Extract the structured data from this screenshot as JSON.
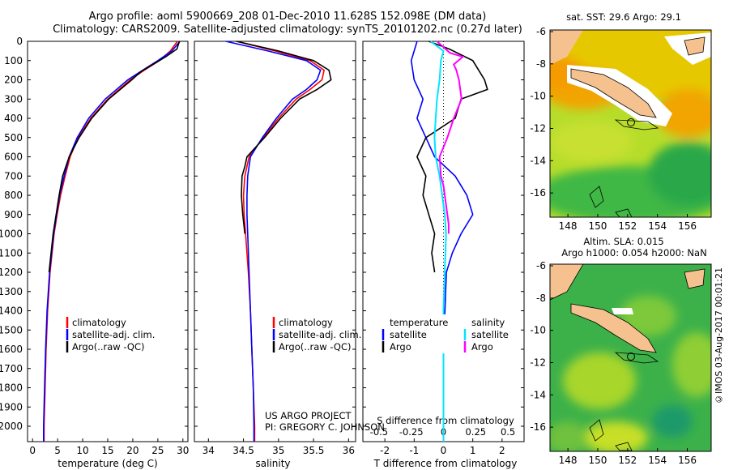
{
  "header": {
    "title_line1": "Argo profile: aoml 5900669_208 01-Dec-2010 11.628S 152.098E (DM data)",
    "title_line2": "Climatology: CARS2009. Satellite-adjusted climatology: synTS_20101202.nc (0.27d later)"
  },
  "colors": {
    "climatology": "#ff0000",
    "satellite": "#0000ff",
    "argo": "#000000",
    "sat_s": "#00e5ff",
    "argo_s": "#ff00ff"
  },
  "depth_axis": {
    "ticks": [
      "0",
      "100",
      "200",
      "300",
      "400",
      "500",
      "600",
      "700",
      "800",
      "900",
      "1000",
      "1100",
      "1200",
      "1300",
      "1400",
      "1500",
      "1600",
      "1700",
      "1800",
      "1900",
      "2000"
    ]
  },
  "chart_data": [
    {
      "type": "line",
      "xlabel": "temperature (deg C)",
      "xlim": [
        -1,
        31
      ],
      "ylim": [
        0,
        2080
      ],
      "xticks": [
        "0",
        "5",
        "10",
        "15",
        "20",
        "25",
        "30"
      ],
      "legend": [
        "climatology",
        "satellite-adj. clim.",
        "Argo(..raw -QC)"
      ],
      "series": [
        {
          "name": "climatology",
          "depth": [
            0,
            50,
            100,
            150,
            200,
            300,
            400,
            500,
            600,
            700,
            800,
            900,
            1000,
            1200,
            1400,
            1600,
            1800,
            2000,
            2080
          ],
          "values": [
            28.9,
            27.5,
            25.3,
            22.3,
            19.5,
            15.0,
            11.6,
            9.1,
            7.5,
            6.5,
            5.6,
            4.9,
            4.3,
            3.5,
            3.0,
            2.7,
            2.5,
            2.3,
            2.3
          ]
        },
        {
          "name": "satellite",
          "depth": [
            0,
            50,
            100,
            150,
            200,
            300,
            400,
            500,
            600,
            700,
            800,
            900,
            1000,
            1200,
            1400,
            1600,
            1800,
            2000,
            2080
          ],
          "values": [
            29.4,
            27.8,
            25.0,
            22.0,
            19.0,
            14.5,
            11.2,
            8.9,
            7.3,
            6.3,
            5.4,
            4.8,
            4.2,
            3.4,
            2.9,
            2.6,
            2.4,
            2.2,
            2.2
          ]
        },
        {
          "name": "argo",
          "depth": [
            0,
            40,
            80,
            120,
            160,
            200,
            300,
            400,
            500,
            600,
            700,
            800,
            900,
            1000,
            1150,
            1200
          ],
          "values": [
            29.3,
            28.8,
            26.6,
            24.0,
            21.5,
            19.8,
            15.2,
            11.8,
            9.3,
            7.3,
            6.0,
            5.3,
            4.7,
            4.1,
            3.5,
            3.3
          ]
        }
      ]
    },
    {
      "type": "line",
      "xlabel": "salinity",
      "xlim": [
        33.8,
        36.1
      ],
      "ylim": [
        0,
        2080
      ],
      "xticks": [
        "34",
        "34.5",
        "35",
        "35.5",
        "36"
      ],
      "legend": [
        "climatology",
        "satellite-adj. clim.",
        "Argo(..raw -QC)"
      ],
      "annotation_line1": "US ARGO PROJECT",
      "annotation_line2": "PI: GREGORY C. JOHNSON",
      "series": [
        {
          "name": "climatology",
          "depth": [
            0,
            50,
            100,
            150,
            200,
            250,
            300,
            400,
            500,
            600,
            700,
            800,
            900,
            1000,
            1200,
            1400,
            1600,
            1800,
            2000,
            2080
          ],
          "values": [
            34.4,
            34.95,
            35.45,
            35.65,
            35.62,
            35.45,
            35.25,
            35.0,
            34.78,
            34.58,
            34.52,
            34.5,
            34.51,
            34.53,
            34.57,
            34.6,
            34.62,
            34.64,
            34.66,
            34.66
          ]
        },
        {
          "name": "satellite",
          "depth": [
            0,
            50,
            100,
            150,
            200,
            250,
            300,
            400,
            500,
            600,
            700,
            800,
            900,
            1000,
            1200,
            1400,
            1600,
            1800,
            2000,
            2080
          ],
          "values": [
            34.25,
            34.85,
            35.4,
            35.6,
            35.55,
            35.4,
            35.2,
            34.97,
            34.77,
            34.6,
            34.56,
            34.55,
            34.55,
            34.56,
            34.58,
            34.6,
            34.62,
            34.64,
            34.65,
            34.65
          ]
        },
        {
          "name": "argo",
          "depth": [
            0,
            50,
            100,
            150,
            200,
            250,
            300,
            400,
            500,
            600,
            650,
            700,
            800,
            900,
            1000
          ],
          "values": [
            34.4,
            35.0,
            35.5,
            35.72,
            35.75,
            35.55,
            35.3,
            35.03,
            34.8,
            34.55,
            34.52,
            34.48,
            34.47,
            34.49,
            34.52
          ]
        }
      ]
    },
    {
      "type": "line",
      "xlabel": "T difference from climatology",
      "xlabel_top": "S difference from climatology",
      "xlim": [
        -2.75,
        2.75
      ],
      "ylim": [
        0,
        2080
      ],
      "xticks": [
        "-2",
        "-1",
        "0",
        "1",
        "2"
      ],
      "xticks_top": [
        "-0.5",
        "-0.25",
        "0",
        "0.25",
        "0.5"
      ],
      "legend_left_title": "temperature",
      "legend_right_title": "salinity",
      "legend_left": [
        "satellite",
        "Argo"
      ],
      "legend_right": [
        "satellite",
        "Argo"
      ],
      "series": [
        {
          "name": "T satellite",
          "depth": [
            0,
            100,
            200,
            300,
            400,
            500,
            600,
            700,
            800,
            900,
            1000,
            1100,
            1200,
            1400,
            1600,
            1800,
            2000,
            2080
          ],
          "values": [
            -0.9,
            -1.1,
            -1.0,
            -0.7,
            -0.9,
            -0.6,
            -0.3,
            0.4,
            0.8,
            1.0,
            0.6,
            0.3,
            0.1,
            0.05,
            0,
            0,
            0,
            0
          ]
        },
        {
          "name": "T argo",
          "depth": [
            0,
            40,
            100,
            150,
            200,
            250,
            300,
            400,
            500,
            600,
            700,
            800,
            900,
            950,
            1000,
            1100,
            1200
          ],
          "values": [
            -0.5,
            0.2,
            1.0,
            1.2,
            1.4,
            1.5,
            0.6,
            0.4,
            -0.6,
            -0.9,
            -0.6,
            -0.7,
            -0.5,
            -0.4,
            -0.3,
            -0.4,
            -0.3
          ]
        },
        {
          "name": "S satellite",
          "depth": [
            0,
            50,
            100,
            200,
            300,
            400,
            500,
            600,
            700,
            800,
            900,
            1000,
            1200,
            1400,
            1600,
            1800,
            2000,
            2080
          ],
          "values": [
            -0.1,
            0,
            -0.02,
            -0.03,
            -0.05,
            -0.06,
            -0.07,
            -0.06,
            -0.03,
            -0.01,
            0.01,
            0.02,
            0.01,
            0,
            0,
            0,
            0,
            0
          ]
        },
        {
          "name": "S argo",
          "depth": [
            0,
            60,
            80,
            120,
            150,
            200,
            300,
            400,
            500,
            600,
            700,
            750,
            800,
            900,
            950,
            1000
          ],
          "values": [
            -0.05,
            0.05,
            0.15,
            0.08,
            0.1,
            0.12,
            0.14,
            0.08,
            0.03,
            -0.03,
            -0.02,
            0,
            0.01,
            0.03,
            0.04,
            0.04
          ]
        }
      ]
    },
    {
      "type": "heatmap",
      "title": "sat. SST: 29.6  Argo: 29.1",
      "yticks": [
        "-6",
        "-8",
        "-10",
        "-12",
        "-14",
        "-16"
      ],
      "xticks": [
        "148",
        "150",
        "152",
        "154",
        "156"
      ]
    },
    {
      "type": "heatmap",
      "title_line1": "Altim. SLA: 0.015",
      "title_line2": "Argo h1000: 0.054 h2000: NaN",
      "yticks": [
        "-6",
        "-8",
        "-10",
        "-12",
        "-14",
        "-16"
      ],
      "xticks": [
        "148",
        "150",
        "152",
        "154",
        "156"
      ]
    }
  ],
  "footer": {
    "stamp": "©IMOS 03-Aug-2017 00:01:21"
  }
}
